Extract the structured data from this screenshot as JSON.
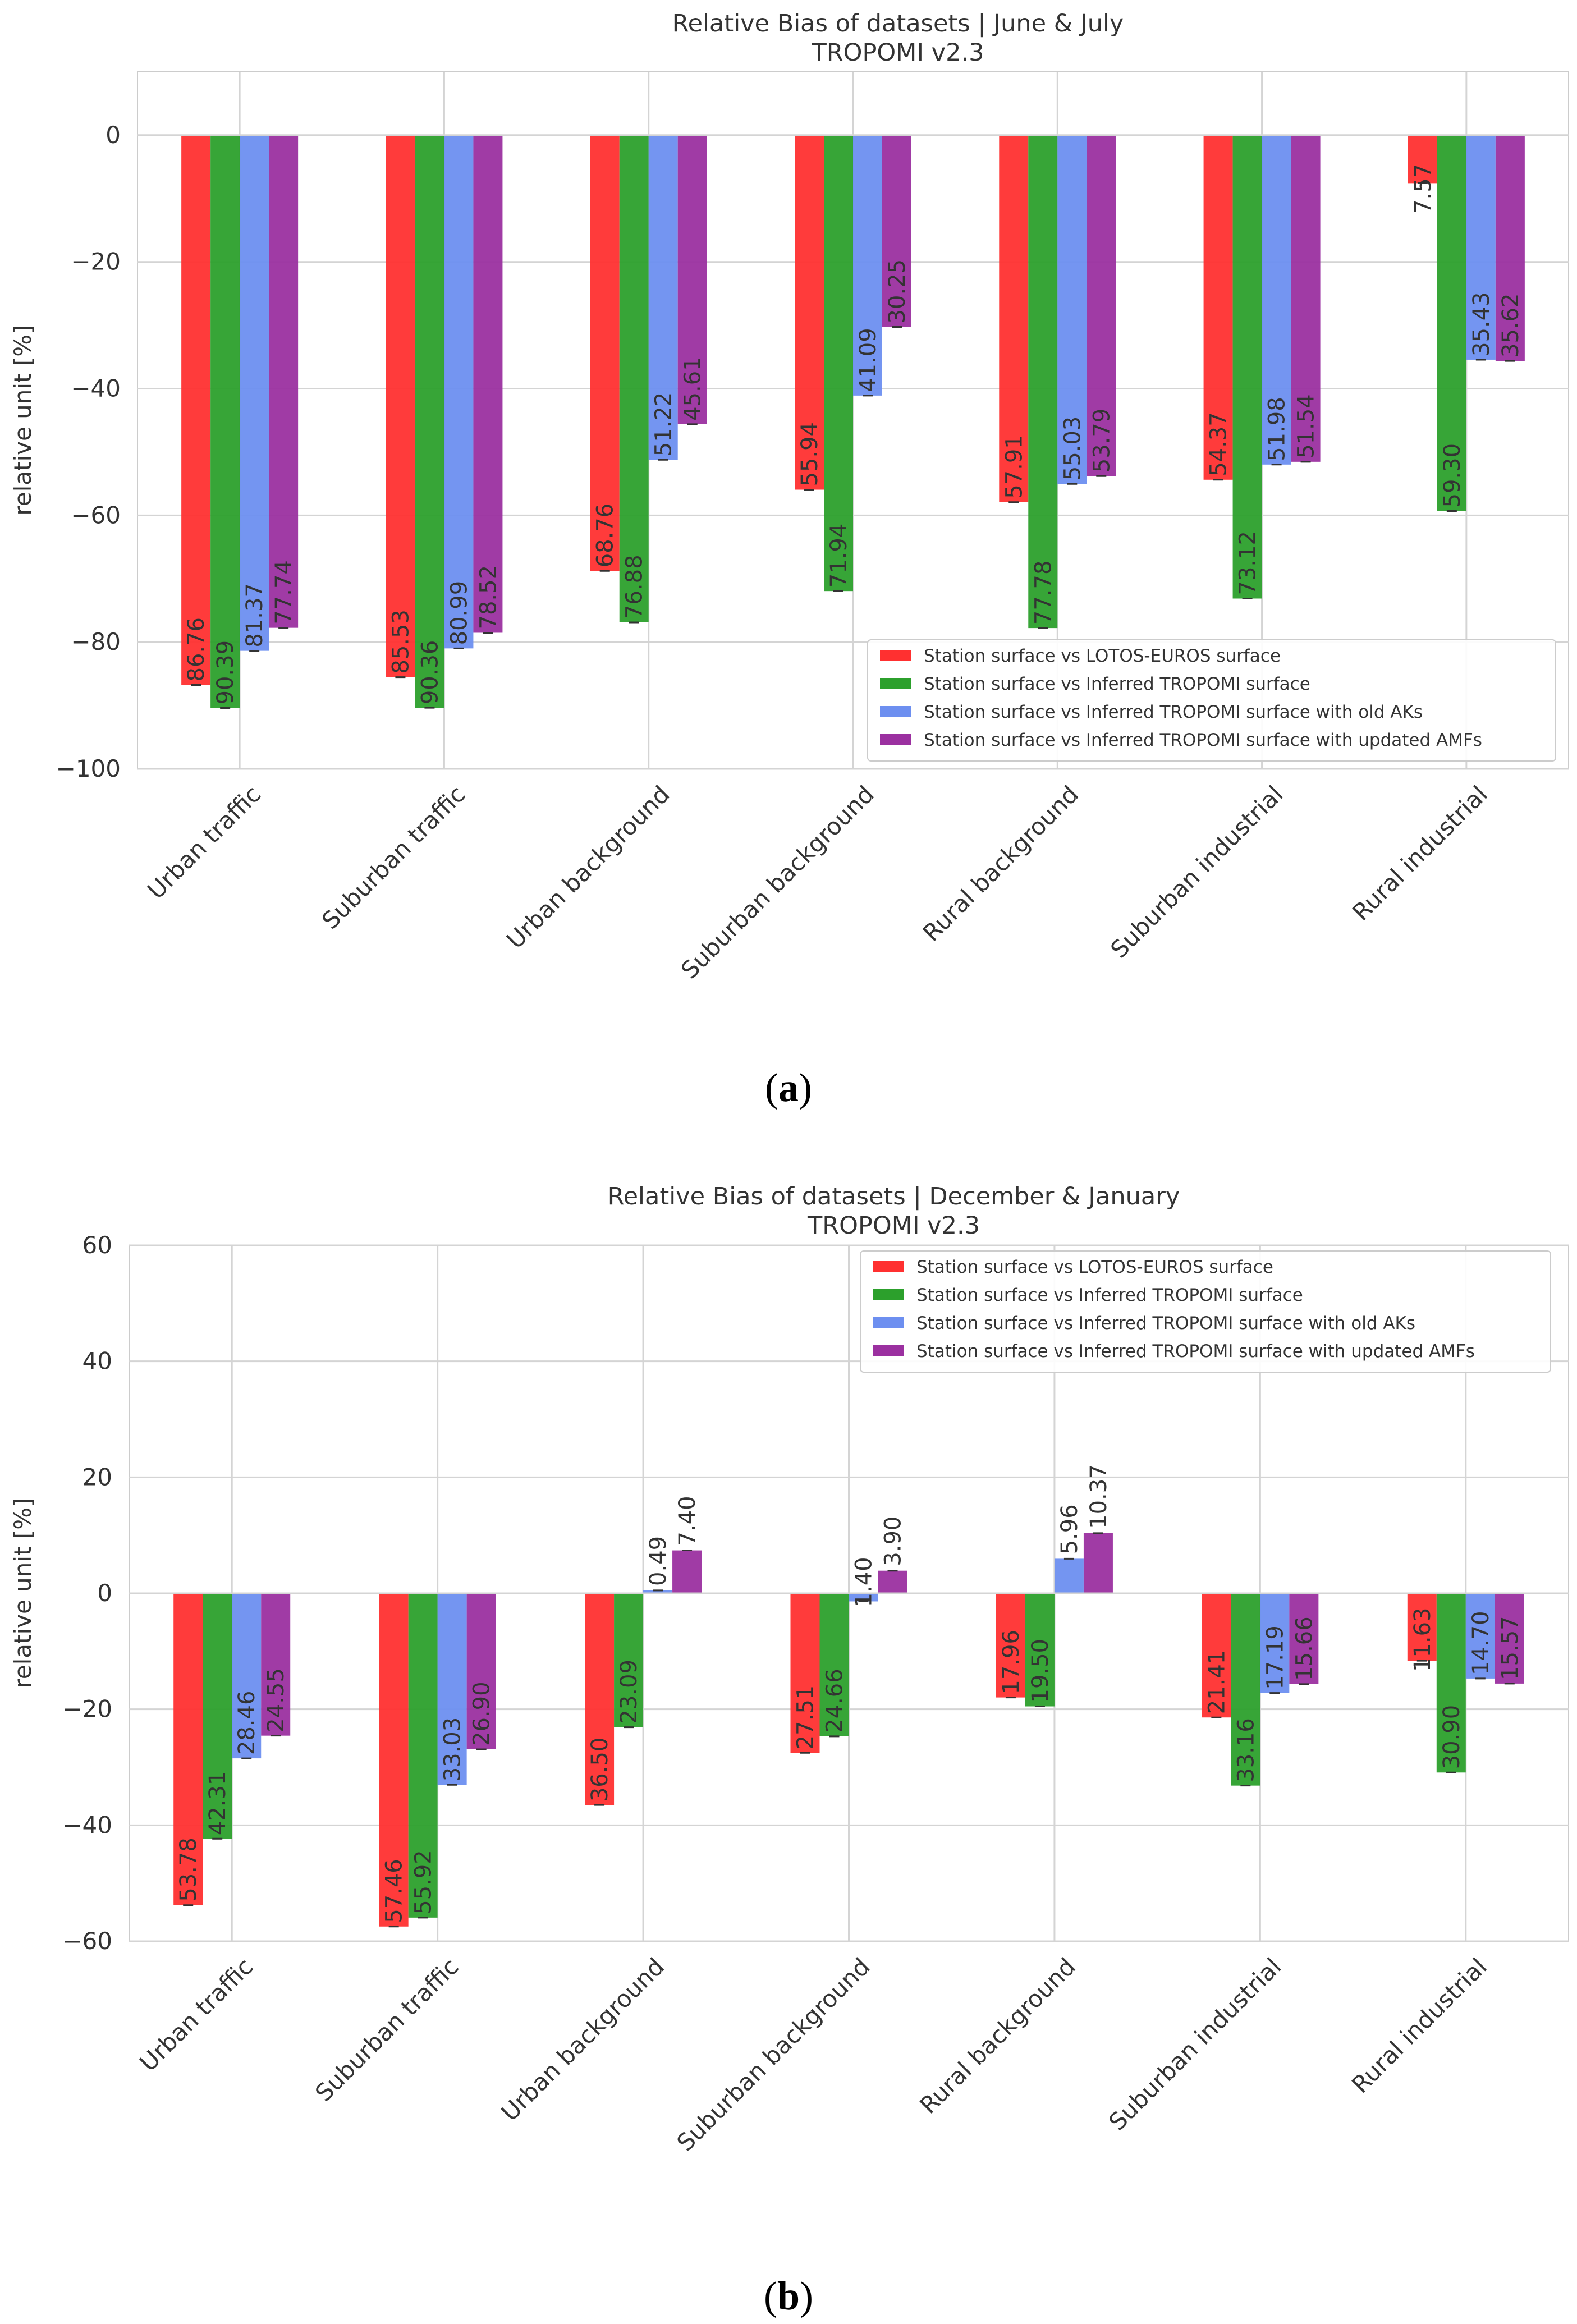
{
  "figure": {
    "captions": [
      {
        "open": "(",
        "letter": "a",
        "close": ")"
      },
      {
        "open": "(",
        "letter": "b",
        "close": ")"
      }
    ]
  },
  "chart_data": [
    {
      "type": "bar",
      "title": "Relative Bias of datasets | June & July",
      "subtitle": "TROPOMI v2.3",
      "xlabel": "",
      "ylabel": "relative unit [%]",
      "ylim": [
        -100,
        10
      ],
      "yticks": [
        0,
        -20,
        -40,
        -60,
        -80,
        -100
      ],
      "ytick_labels": [
        "0",
        "−20",
        "−40",
        "−60",
        "−80",
        "−100"
      ],
      "grid": true,
      "legend_position": "lower-right",
      "categories": [
        "Urban traffic",
        "Suburban traffic",
        "Urban background",
        "Suburban background",
        "Rural background",
        "Suburban industrial",
        "Rural industrial"
      ],
      "series": [
        {
          "name": "Station surface vs LOTOS-EUROS surface",
          "color": "#ff3030",
          "values": [
            -86.76,
            -85.53,
            -68.76,
            -55.94,
            -57.91,
            -54.37,
            -7.57
          ],
          "labels": [
            "86.76",
            "85.53",
            "68.76",
            "55.94",
            "57.91",
            "54.37",
            "7.57"
          ]
        },
        {
          "name": "Station surface vs Inferred TROPOMI surface",
          "color": "#2ca02c",
          "values": [
            -90.39,
            -90.36,
            -76.88,
            -71.94,
            -77.78,
            -73.12,
            -59.3
          ],
          "labels": [
            "90.39",
            "90.36",
            "76.88",
            "71.94",
            "77.78",
            "73.12",
            "59.30"
          ]
        },
        {
          "name": "Station surface vs Inferred TROPOMI surface with old AKs",
          "color": "#6d8ff0",
          "values": [
            -81.37,
            -80.99,
            -51.22,
            -41.09,
            -55.03,
            -51.98,
            -35.43
          ],
          "labels": [
            "81.37",
            "80.99",
            "51.22",
            "41.09",
            "55.03",
            "51.98",
            "35.43"
          ]
        },
        {
          "name": "Station surface vs Inferred TROPOMI surface with updated AMFs",
          "color": "#9b30a0",
          "values": [
            -77.74,
            -78.52,
            -45.61,
            -30.25,
            -53.79,
            -51.54,
            -35.62
          ],
          "labels": [
            "77.74",
            "78.52",
            "45.61",
            "30.25",
            "53.79",
            "51.54",
            "35.62"
          ]
        }
      ]
    },
    {
      "type": "bar",
      "title": "Relative Bias of datasets | December & January",
      "subtitle": "TROPOMI v2.3",
      "xlabel": "",
      "ylabel": "relative unit [%]",
      "ylim": [
        -60,
        60
      ],
      "yticks": [
        60,
        40,
        20,
        0,
        -20,
        -40,
        -60
      ],
      "ytick_labels": [
        "60",
        "40",
        "20",
        "0",
        "−20",
        "−40",
        "−60"
      ],
      "grid": true,
      "legend_position": "upper-right",
      "categories": [
        "Urban traffic",
        "Suburban traffic",
        "Urban background",
        "Suburban background",
        "Rural background",
        "Suburban industrial",
        "Rural industrial"
      ],
      "series": [
        {
          "name": "Station surface vs LOTOS-EUROS surface",
          "color": "#ff3030",
          "values": [
            -53.78,
            -57.46,
            -36.5,
            -27.51,
            -17.96,
            -21.41,
            -11.63
          ],
          "labels": [
            "53.78",
            "57.46",
            "36.50",
            "27.51",
            "17.96",
            "21.41",
            "11.63"
          ]
        },
        {
          "name": "Station surface vs Inferred TROPOMI surface",
          "color": "#2ca02c",
          "values": [
            -42.31,
            -55.92,
            -23.09,
            -24.66,
            -19.5,
            -33.16,
            -30.9
          ],
          "labels": [
            "42.31",
            "55.92",
            "23.09",
            "24.66",
            "19.50",
            "33.16",
            "30.90"
          ]
        },
        {
          "name": "Station surface vs Inferred TROPOMI surface with old AKs",
          "color": "#6d8ff0",
          "values": [
            -28.46,
            -33.03,
            0.49,
            -1.4,
            5.96,
            -17.19,
            -14.7
          ],
          "labels": [
            "28.46",
            "33.03",
            "0.49",
            "1.40",
            "5.96",
            "17.19",
            "14.70"
          ]
        },
        {
          "name": "Station surface vs Inferred TROPOMI surface with updated AMFs",
          "color": "#9b30a0",
          "values": [
            -24.55,
            -26.9,
            7.4,
            3.9,
            10.37,
            -15.66,
            -15.57
          ],
          "labels": [
            "24.55",
            "26.90",
            "7.40",
            "3.90",
            "10.37",
            "15.66",
            "15.57"
          ]
        }
      ]
    }
  ]
}
